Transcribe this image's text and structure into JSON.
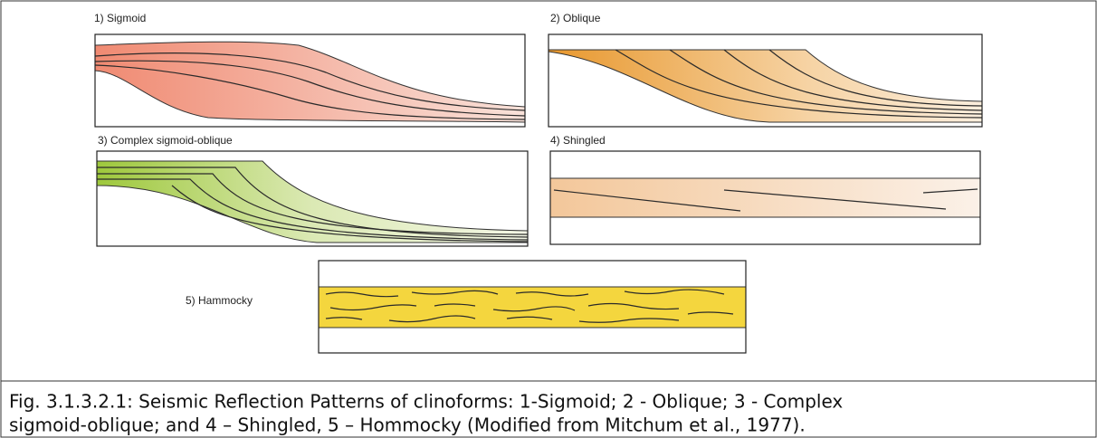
{
  "panels": [
    {
      "label": "1) Sigmoid"
    },
    {
      "label": "2) Oblique"
    },
    {
      "label": "3) Complex sigmoid-oblique"
    },
    {
      "label": "4) Shingled"
    },
    {
      "label": "5) Hammocky"
    }
  ],
  "caption": {
    "lines": [
      "Fig. 3.1.3.2.1: Seismic Reflection Patterns of clinoforms: 1-Sigmoid; 2 - Oblique; 3 - Complex",
      "sigmoid-oblique; and 4 – Shingled, 5 – Hommocky  (Modified from Mitchum et al., 1977)."
    ]
  }
}
